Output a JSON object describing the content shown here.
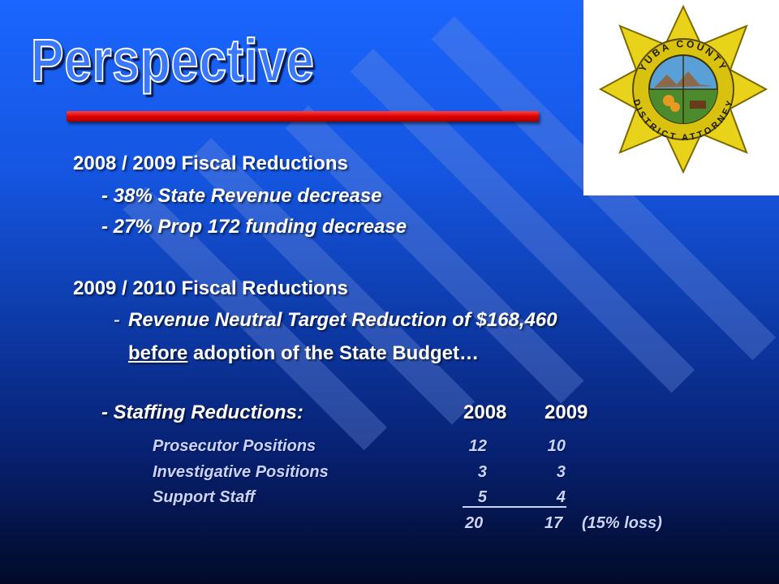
{
  "title": "Perspective",
  "colors": {
    "title_fill": "#3a78ff",
    "underline": "#e00000",
    "body_text": "#ffffff",
    "table_text": "#c8d4ff"
  },
  "seal": {
    "text_top": "YUBA COUNTY",
    "text_bottom": "DISTRICT ATTORNEY"
  },
  "section1": {
    "heading": "2008 / 2009 Fiscal Reductions",
    "bullets": [
      "- 38% State Revenue decrease",
      "- 27% Prop 172 funding decrease"
    ]
  },
  "section2": {
    "heading": "2009 / 2010 Fiscal Reductions",
    "dash": "-",
    "line1": "Revenue Neutral Target Reduction of $168,460",
    "line2_underlined": "before",
    "line2_rest": " adoption of the State Budget…"
  },
  "staffing": {
    "label": "- Staffing Reductions:",
    "col_2008": "2008",
    "col_2009": "2009",
    "rows": [
      {
        "name": "Prosecutor Positions",
        "v2008": "12",
        "v2009": "10"
      },
      {
        "name": "Investigative Positions",
        "v2008": "3",
        "v2009": "3"
      },
      {
        "name": "Support Staff",
        "v2008": "5",
        "v2009": "4"
      }
    ],
    "total_2008": "20",
    "total_2009": "17",
    "note": "(15% loss)"
  }
}
